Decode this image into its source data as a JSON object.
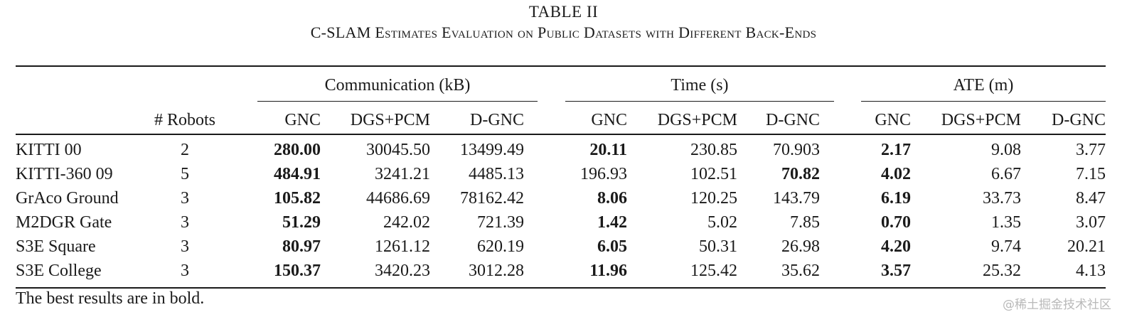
{
  "caption": {
    "label": "TABLE II",
    "title": "C-SLAM Estimates Evaluation on Public Datasets with Different Back-Ends"
  },
  "groups": [
    "Communication (kB)",
    "Time (s)",
    "ATE (m)"
  ],
  "columns": {
    "robots": "# Robots",
    "sub": [
      "GNC",
      "DGS+PCM",
      "D-GNC",
      "GNC",
      "DGS+PCM",
      "D-GNC",
      "GNC",
      "DGS+PCM",
      "D-GNC"
    ]
  },
  "rows": [
    {
      "dataset": "KITTI 00",
      "robots": "2",
      "values": [
        "280.00",
        "30045.50",
        "13499.49",
        "20.11",
        "230.85",
        "70.903",
        "2.17",
        "9.08",
        "3.77"
      ],
      "bold": [
        0,
        3,
        6
      ]
    },
    {
      "dataset": "KITTI-360 09",
      "robots": "5",
      "values": [
        "484.91",
        "3241.21",
        "4485.13",
        "196.93",
        "102.51",
        "70.82",
        "4.02",
        "6.67",
        "7.15"
      ],
      "bold": [
        0,
        5,
        6
      ]
    },
    {
      "dataset": "GrAco Ground",
      "robots": "3",
      "values": [
        "105.82",
        "44686.69",
        "78162.42",
        "8.06",
        "120.25",
        "143.79",
        "6.19",
        "33.73",
        "8.47"
      ],
      "bold": [
        0,
        3,
        6
      ]
    },
    {
      "dataset": "M2DGR Gate",
      "robots": "3",
      "values": [
        "51.29",
        "242.02",
        "721.39",
        "1.42",
        "5.02",
        "7.85",
        "0.70",
        "1.35",
        "3.07"
      ],
      "bold": [
        0,
        3,
        6
      ]
    },
    {
      "dataset": "S3E Square",
      "robots": "3",
      "values": [
        "80.97",
        "1261.12",
        "620.19",
        "6.05",
        "50.31",
        "26.98",
        "4.20",
        "9.74",
        "20.21"
      ],
      "bold": [
        0,
        3,
        6
      ]
    },
    {
      "dataset": "S3E College",
      "robots": "3",
      "values": [
        "150.37",
        "3420.23",
        "3012.28",
        "11.96",
        "125.42",
        "35.62",
        "3.57",
        "25.32",
        "4.13"
      ],
      "bold": [
        0,
        3,
        6
      ]
    }
  ],
  "footnote": "The best results are in bold.",
  "watermark": "@稀土掘金技术社区"
}
